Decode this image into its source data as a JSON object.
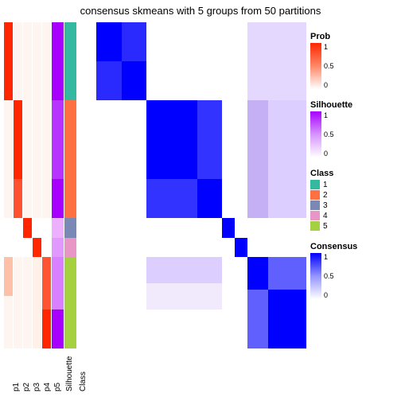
{
  "title": "consensus skmeans with 5 groups from 50 partitions",
  "background_color": "#ffffff",
  "fontsize_title": 13,
  "fontsize_label": 10,
  "colors": {
    "prob_high": "#ff2600",
    "prob_low": "#ffffff",
    "sil_high": "#a800ff",
    "sil_low": "#ffffff",
    "cons_high": "#0000ff",
    "cons_low": "#ffffff",
    "class1": "#35b8a0",
    "class2": "#ff7043",
    "class3": "#7a88b5",
    "class4": "#e896c5",
    "class5": "#a5d040"
  },
  "group_heights_pct": [
    24,
    36,
    6,
    6,
    28
  ],
  "anno_labels": [
    "p1",
    "p2",
    "p3",
    "p4",
    "p5",
    "Silhouette",
    "Class"
  ],
  "anno_cols": [
    {
      "wide": false,
      "cells": [
        {
          "h": 12,
          "c": "#ff2600"
        },
        {
          "h": 12,
          "c": "#ff2600"
        },
        {
          "h": 36,
          "c": "#fff5f0"
        },
        {
          "h": 6,
          "c": "#ffffff"
        },
        {
          "h": 6,
          "c": "#ffffff"
        },
        {
          "h": 12,
          "c": "#ffc0a8"
        },
        {
          "h": 16,
          "c": "#fff5f0"
        }
      ]
    },
    {
      "wide": false,
      "cells": [
        {
          "h": 24,
          "c": "#fff5f0"
        },
        {
          "h": 24,
          "c": "#ff2600"
        },
        {
          "h": 12,
          "c": "#ff5030"
        },
        {
          "h": 6,
          "c": "#ffffff"
        },
        {
          "h": 6,
          "c": "#ffffff"
        },
        {
          "h": 28,
          "c": "#fff5f0"
        }
      ]
    },
    {
      "wide": false,
      "cells": [
        {
          "h": 24,
          "c": "#fff5f0"
        },
        {
          "h": 36,
          "c": "#fff5f0"
        },
        {
          "h": 6,
          "c": "#ff2600"
        },
        {
          "h": 6,
          "c": "#ffffff"
        },
        {
          "h": 28,
          "c": "#fff5f0"
        }
      ]
    },
    {
      "wide": false,
      "cells": [
        {
          "h": 24,
          "c": "#fff5f0"
        },
        {
          "h": 36,
          "c": "#fff5f0"
        },
        {
          "h": 6,
          "c": "#ffffff"
        },
        {
          "h": 6,
          "c": "#ff2600"
        },
        {
          "h": 28,
          "c": "#fff0e8"
        }
      ]
    },
    {
      "wide": false,
      "cells": [
        {
          "h": 24,
          "c": "#fff5f0"
        },
        {
          "h": 36,
          "c": "#fff5f0"
        },
        {
          "h": 6,
          "c": "#ffffff"
        },
        {
          "h": 6,
          "c": "#ffffff"
        },
        {
          "h": 16,
          "c": "#ff5533"
        },
        {
          "h": 12,
          "c": "#ff2600"
        }
      ]
    },
    {
      "wide": true,
      "cells": [
        {
          "h": 24,
          "c": "#a800ff"
        },
        {
          "h": 24,
          "c": "#b733ff"
        },
        {
          "h": 12,
          "c": "#a800ff"
        },
        {
          "h": 6,
          "c": "#ecb0ff"
        },
        {
          "h": 6,
          "c": "#e299ff"
        },
        {
          "h": 16,
          "c": "#d880ff"
        },
        {
          "h": 12,
          "c": "#a800ff"
        }
      ]
    },
    {
      "wide": true,
      "cells": [
        {
          "h": 24,
          "c": "#35b8a0"
        },
        {
          "h": 36,
          "c": "#ff7043"
        },
        {
          "h": 6,
          "c": "#7a88b5"
        },
        {
          "h": 6,
          "c": "#e896c5"
        },
        {
          "h": 28,
          "c": "#a5d040"
        }
      ]
    }
  ],
  "heatmap_blocks": [
    {
      "l": 0,
      "t": 0,
      "w": 24,
      "h": 24,
      "c": "#0000ff"
    },
    {
      "l": 12,
      "t": 0,
      "w": 12,
      "h": 12,
      "c": "#2a2aff"
    },
    {
      "l": 0,
      "t": 12,
      "w": 12,
      "h": 12,
      "c": "#2a2aff"
    },
    {
      "l": 72,
      "t": 0,
      "w": 28,
      "h": 24,
      "c": "#e5d8ff"
    },
    {
      "l": 24,
      "t": 24,
      "w": 36,
      "h": 36,
      "c": "#3333ff"
    },
    {
      "l": 24,
      "t": 24,
      "w": 24,
      "h": 24,
      "c": "#0000ff"
    },
    {
      "l": 48,
      "t": 48,
      "w": 12,
      "h": 12,
      "c": "#0000ff"
    },
    {
      "l": 72,
      "t": 24,
      "w": 28,
      "h": 36,
      "c": "#c5b0f5"
    },
    {
      "l": 82,
      "t": 24,
      "w": 18,
      "h": 36,
      "c": "#dccfff"
    },
    {
      "l": 60,
      "t": 60,
      "w": 6,
      "h": 6,
      "c": "#0000ff"
    },
    {
      "l": 66,
      "t": 66,
      "w": 6,
      "h": 6,
      "c": "#0000ff"
    },
    {
      "l": 24,
      "t": 72,
      "w": 36,
      "h": 16,
      "c": "#dccfff"
    },
    {
      "l": 24,
      "t": 80,
      "w": 36,
      "h": 8,
      "c": "#f0eafc"
    },
    {
      "l": 72,
      "t": 72,
      "w": 28,
      "h": 28,
      "c": "#4d4dff"
    },
    {
      "l": 72,
      "t": 72,
      "w": 10,
      "h": 10,
      "c": "#0000ff"
    },
    {
      "l": 82,
      "t": 82,
      "w": 18,
      "h": 18,
      "c": "#0000ff"
    },
    {
      "l": 72,
      "t": 82,
      "w": 10,
      "h": 18,
      "c": "#6060ff"
    },
    {
      "l": 82,
      "t": 72,
      "w": 18,
      "h": 10,
      "c": "#6060ff"
    }
  ],
  "legends": {
    "prob": {
      "title": "Prob",
      "ticks": [
        "1",
        "0.5",
        "0"
      ],
      "grad": [
        "#ff2600",
        "#ff8866",
        "#ffffff"
      ]
    },
    "sil": {
      "title": "Silhouette",
      "ticks": [
        "1",
        "0.5",
        "0"
      ],
      "grad": [
        "#a800ff",
        "#d695ff",
        "#ffffff"
      ]
    },
    "class": {
      "title": "Class",
      "items": [
        {
          "label": "1",
          "c": "#35b8a0"
        },
        {
          "label": "2",
          "c": "#ff7043"
        },
        {
          "label": "3",
          "c": "#7a88b5"
        },
        {
          "label": "4",
          "c": "#e896c5"
        },
        {
          "label": "5",
          "c": "#a5d040"
        }
      ]
    },
    "cons": {
      "title": "Consensus",
      "ticks": [
        "1",
        "0.5",
        "0"
      ],
      "grad": [
        "#0000ff",
        "#9494ff",
        "#ffffff"
      ]
    }
  }
}
